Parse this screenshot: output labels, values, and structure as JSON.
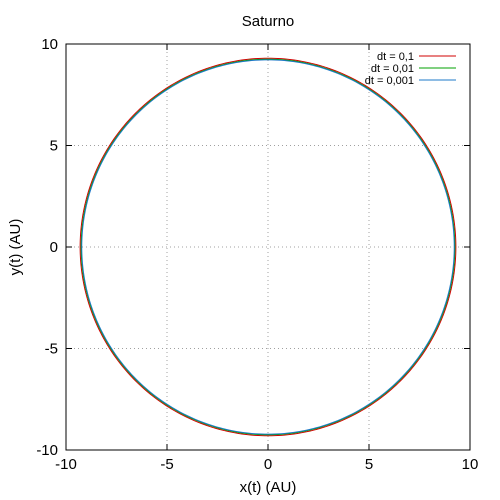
{
  "chart_data": {
    "type": "line",
    "title": "Saturno",
    "xlabel": "x(t) (AU)",
    "ylabel": "y(t) (AU)",
    "xlim": [
      -10,
      10
    ],
    "ylim": [
      -10,
      10
    ],
    "x_ticks": [
      -10,
      -5,
      0,
      5,
      10
    ],
    "y_ticks": [
      -10,
      -5,
      0,
      5,
      10
    ],
    "x_tick_labels": [
      "-10",
      "-5",
      "0",
      "5",
      "10"
    ],
    "y_tick_labels": [
      "-10",
      "-5",
      "0",
      "5",
      "10"
    ],
    "grid": true,
    "legend_position": "top-right",
    "series": [
      {
        "name": "dt = 0,1",
        "color": "#d00000",
        "orbit": {
          "center": [
            0,
            0
          ],
          "radius_x": 9.3,
          "radius_y": 9.3
        }
      },
      {
        "name": "dt = 0,01",
        "color": "#00a000",
        "orbit": {
          "center": [
            0,
            0
          ],
          "radius_x": 9.25,
          "radius_y": 9.25
        }
      },
      {
        "name": "dt = 0,001",
        "color": "#1e78c8",
        "orbit": {
          "center": [
            0,
            0
          ],
          "radius_x": 9.22,
          "radius_y": 9.22
        }
      }
    ]
  }
}
